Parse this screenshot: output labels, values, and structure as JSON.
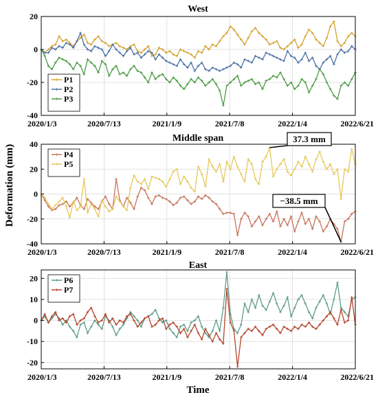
{
  "figure": {
    "ylabel": "Deformation (mm)",
    "xlabel": "Time"
  },
  "chart_data": [
    {
      "type": "line",
      "title": "West",
      "xlabel": "",
      "ylabel": "Deformation (mm)",
      "x_range": [
        "2020/1/3",
        "2022/6/21"
      ],
      "x_ticks": [
        "2020/1/3",
        "2020/7/13",
        "2021/1/9",
        "2021/7/8",
        "2022/1/4",
        "2022/6/21"
      ],
      "ylim": [
        -40,
        20
      ],
      "y_ticks": [
        -40,
        -20,
        0,
        20
      ],
      "grid": true,
      "legend": "bottom-left",
      "annotations": [],
      "series": [
        {
          "name": "P1",
          "color": "#d4a22e",
          "values": [
            0,
            -2,
            0,
            2,
            3,
            8,
            5,
            6,
            4,
            2,
            5,
            7,
            9,
            4,
            3,
            6,
            8,
            5,
            4,
            2,
            3,
            4,
            2,
            1,
            0,
            2,
            3,
            -1,
            -2,
            0,
            2,
            -4,
            -3,
            1,
            0,
            -2,
            -1,
            -3,
            -4,
            0,
            -1,
            -2,
            -3,
            -5,
            -1,
            -2,
            2,
            0,
            3,
            2,
            5,
            8,
            10,
            14,
            12,
            9,
            6,
            3,
            7,
            11,
            13,
            10,
            8,
            6,
            3,
            4,
            5,
            1,
            0,
            2,
            4,
            6,
            1,
            3,
            8,
            12,
            10,
            6,
            4,
            2,
            7,
            14,
            17,
            5,
            2,
            4,
            8,
            10,
            8
          ]
        },
        {
          "name": "P2",
          "color": "#4b6fa5",
          "values": [
            0,
            -2,
            -2,
            1,
            0,
            2,
            1,
            4,
            3,
            1,
            5,
            10,
            3,
            0,
            -1,
            2,
            1,
            0,
            -4,
            -1,
            3,
            0,
            -2,
            -4,
            -1,
            1,
            -3,
            -2,
            -5,
            -3,
            -1,
            -2,
            -6,
            -3,
            -5,
            -7,
            -8,
            -9,
            -10,
            -6,
            -9,
            -11,
            -8,
            -13,
            -10,
            -8,
            -12,
            -13,
            -11,
            -12,
            -13,
            -12,
            -11,
            -10,
            -8,
            -9,
            -11,
            -6,
            -7,
            -8,
            -4,
            -5,
            -6,
            -2,
            -3,
            -4,
            -5,
            -6,
            -7,
            -1,
            -4,
            -5,
            -8,
            -6,
            -2,
            -7,
            -5,
            -10,
            -12,
            -8,
            -6,
            -4,
            -9,
            -3,
            0,
            -2,
            -1,
            2,
            0
          ]
        },
        {
          "name": "P3",
          "color": "#4b9b44",
          "values": [
            0,
            -4,
            -10,
            -12,
            -8,
            -5,
            -6,
            -7,
            -9,
            -12,
            -8,
            -10,
            -15,
            -6,
            -8,
            -10,
            -14,
            -7,
            -9,
            -16,
            -12,
            -10,
            -15,
            -14,
            -16,
            -12,
            -10,
            -13,
            -14,
            -17,
            -20,
            -14,
            -18,
            -16,
            -15,
            -18,
            -20,
            -17,
            -19,
            -22,
            -24,
            -21,
            -18,
            -20,
            -17,
            -19,
            -22,
            -20,
            -18,
            -21,
            -25,
            -34,
            -22,
            -20,
            -18,
            -16,
            -22,
            -20,
            -19,
            -18,
            -21,
            -20,
            -24,
            -19,
            -18,
            -16,
            -17,
            -14,
            -18,
            -22,
            -20,
            -24,
            -22,
            -18,
            -20,
            -26,
            -22,
            -18,
            -12,
            -15,
            -20,
            -24,
            -28,
            -30,
            -22,
            -20,
            -22,
            -18,
            -14
          ]
        }
      ]
    },
    {
      "type": "line",
      "title": "Middle span",
      "xlabel": "",
      "ylabel": "Deformation (mm)",
      "x_range": [
        "2020/1/3",
        "2022/6/21"
      ],
      "x_ticks": [
        "2020/1/3",
        "2020/7/13",
        "2021/1/9",
        "2021/7/8",
        "2022/1/4",
        "2022/6/21"
      ],
      "ylim": [
        -40,
        40
      ],
      "y_ticks": [
        -40,
        -20,
        0,
        20,
        40
      ],
      "grid": true,
      "legend": "top-left",
      "annotations": [
        "37.3 mm",
        "−38.5 mm"
      ],
      "series": [
        {
          "name": "P4",
          "color": "#c8735a",
          "values": [
            0,
            -5,
            -10,
            -13,
            -12,
            -9,
            -8,
            -6,
            -10,
            -7,
            -3,
            -9,
            -12,
            -4,
            -7,
            -10,
            -12,
            -6,
            -2,
            -8,
            -12,
            12,
            -5,
            -10,
            -3,
            -7,
            -12,
            -2,
            5,
            3,
            -3,
            -8,
            -2,
            -1,
            -3,
            -4,
            -6,
            -9,
            -7,
            -3,
            -2,
            -5,
            -8,
            -6,
            -2,
            -4,
            -1,
            -3,
            -6,
            -8,
            -12,
            -16,
            -15,
            -15,
            -16,
            -33,
            -20,
            -15,
            -18,
            -26,
            -22,
            -18,
            -25,
            -20,
            -16,
            -22,
            -14,
            -26,
            -20,
            -25,
            -18,
            -30,
            -22,
            -15,
            -24,
            -20,
            -28,
            -18,
            -22,
            -30,
            -26,
            -20,
            -24,
            -28,
            -38.5,
            -22,
            -20,
            -16,
            -14
          ]
        },
        {
          "name": "P5",
          "color": "#e6c85a",
          "values": [
            0,
            -3,
            -8,
            -12,
            -9,
            -6,
            -3,
            -10,
            -19,
            -6,
            -13,
            -10,
            12,
            -15,
            -8,
            -12,
            -18,
            -5,
            -10,
            -14,
            -12,
            -2,
            -6,
            -10,
            -13,
            5,
            15,
            10,
            8,
            12,
            4,
            14,
            13,
            12,
            10,
            6,
            12,
            18,
            20,
            8,
            14,
            10,
            5,
            2,
            22,
            16,
            6,
            28,
            22,
            18,
            24,
            10,
            26,
            20,
            30,
            22,
            16,
            10,
            28,
            24,
            12,
            8,
            26,
            30,
            37.3,
            14,
            20,
            24,
            28,
            18,
            15,
            20,
            26,
            22,
            30,
            24,
            18,
            28,
            34,
            26,
            20,
            24,
            16,
            20,
            -4,
            20,
            18,
            36,
            24
          ]
        }
      ]
    },
    {
      "type": "line",
      "title": "East",
      "xlabel": "Time",
      "ylabel": "Deformation (mm)",
      "x_range": [
        "2020/1/3",
        "2022/6/21"
      ],
      "x_ticks": [
        "2020/1/3",
        "2020/7/13",
        "2021/1/9",
        "2021/7/8",
        "2022/1/4",
        "2022/6/21"
      ],
      "ylim": [
        -23,
        24
      ],
      "y_ticks": [
        -20,
        -10,
        0,
        10,
        20
      ],
      "grid": true,
      "legend": "top-left",
      "annotations": [],
      "series": [
        {
          "name": "P6",
          "color": "#5e9a88",
          "values": [
            0,
            2,
            -1,
            1,
            3,
            1,
            -2,
            0,
            -3,
            -5,
            -8,
            -2,
            -1,
            -6,
            -3,
            0,
            -2,
            -4,
            2,
            0,
            -3,
            -7,
            -4,
            -2,
            1,
            4,
            2,
            0,
            -3,
            1,
            2,
            3,
            5,
            1,
            -1,
            0,
            -4,
            -6,
            -8,
            -3,
            -2,
            -5,
            -1,
            0,
            2,
            -3,
            -6,
            -8,
            -5,
            0,
            -5,
            6,
            23,
            3,
            -4,
            -6,
            -2,
            8,
            4,
            10,
            6,
            12,
            7,
            5,
            9,
            13,
            8,
            4,
            7,
            11,
            2,
            6,
            10,
            12,
            8,
            4,
            1,
            6,
            9,
            12,
            8,
            3,
            10,
            18,
            6,
            4,
            2,
            10,
            11
          ]
        },
        {
          "name": "P7",
          "color": "#b5442a",
          "values": [
            0,
            3,
            -1,
            2,
            4,
            0,
            1,
            -1,
            2,
            3,
            -2,
            0,
            1,
            4,
            6,
            2,
            -1,
            0,
            3,
            -1,
            1,
            -2,
            0,
            -1,
            2,
            3,
            0,
            -3,
            -1,
            1,
            2,
            -3,
            -2,
            0,
            1,
            -4,
            -2,
            -1,
            -3,
            -6,
            -4,
            -8,
            -5,
            -2,
            -6,
            -9,
            -4,
            -7,
            -10,
            -6,
            -9,
            -11,
            15,
            -1,
            -5,
            -22,
            -8,
            -6,
            -4,
            -5,
            -3,
            -5,
            -7,
            -4,
            -3,
            -2,
            -4,
            -6,
            -3,
            -4,
            -5,
            -3,
            -4,
            -2,
            -3,
            -1,
            -3,
            -4,
            -2,
            0,
            2,
            4,
            1,
            -2,
            5,
            -1,
            0,
            11,
            -2
          ]
        }
      ]
    }
  ]
}
